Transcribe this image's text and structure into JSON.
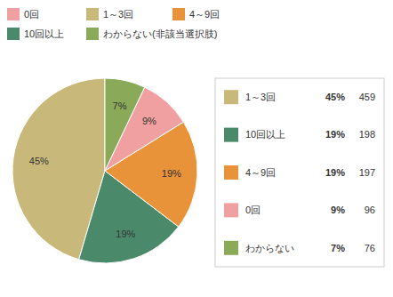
{
  "chart_data": {
    "type": "pie",
    "categories": [
      "1～3回",
      "10回以上",
      "4～9回",
      "0回",
      "わからない"
    ],
    "values": [
      45,
      19,
      19,
      9,
      7
    ],
    "value_labels": [
      "45%",
      "19%",
      "19%",
      "9%",
      "7%"
    ],
    "counts": [
      459,
      198,
      197,
      96,
      76
    ],
    "colors": [
      "#c8b97a",
      "#4a8a6a",
      "#e8923a",
      "#f0a0a0",
      "#8aaa5a"
    ],
    "data_labels": true,
    "legend": "right",
    "top_legend": {
      "labels": [
        "0回",
        "1～3回",
        "4～9回",
        "10回以上",
        "わからない(非該当選択肢)"
      ],
      "colors": [
        "#f0a0a0",
        "#c8b97a",
        "#e8923a",
        "#4a8a6a",
        "#8aaa5a"
      ]
    }
  }
}
